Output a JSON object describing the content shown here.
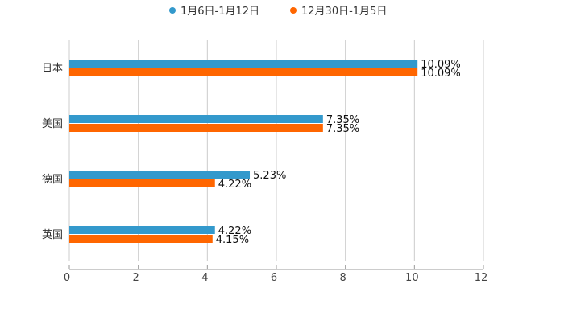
{
  "chart_data": {
    "type": "bar",
    "orientation": "horizontal",
    "title": "",
    "xlabel": "",
    "ylabel": "",
    "categories": [
      "日本",
      "美国",
      "德国",
      "英国"
    ],
    "series": [
      {
        "name": "1月6日-1月12日",
        "color": "#3399cc",
        "values": [
          10.09,
          7.35,
          5.23,
          4.22
        ],
        "labels": [
          "10.09%",
          "7.35%",
          "5.23%",
          "4.22%"
        ]
      },
      {
        "name": "12月30日-1月5日",
        "color": "#ff6600",
        "values": [
          10.09,
          7.35,
          4.22,
          4.15
        ],
        "labels": [
          "10.09%",
          "7.35%",
          "4.22%",
          "4.15%"
        ]
      }
    ],
    "xlim": [
      0,
      12
    ],
    "xticks": [
      "0",
      "2",
      "4",
      "6",
      "8",
      "10",
      "12"
    ],
    "grid": true,
    "legend_position": "top-center"
  }
}
